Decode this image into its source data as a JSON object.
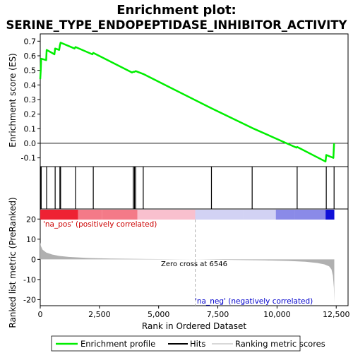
{
  "chart_data": {
    "type": "line",
    "title_line1": "Enrichment plot:",
    "title_line2": "SERINE_TYPE_ENDOPEPTIDASE_INHIBITOR_ACTIVITY",
    "es_panel": {
      "ylabel": "Enrichment score (ES)",
      "ylim": [
        -0.16,
        0.75
      ],
      "yticks": [
        -0.1,
        0.0,
        0.1,
        0.2,
        0.3,
        0.4,
        0.5,
        0.6,
        0.7
      ],
      "ytick_labels": [
        "-0.1",
        "0.0",
        "0.1",
        "0.2",
        "0.3",
        "0.4",
        "0.5",
        "0.6",
        "0.7"
      ],
      "points": [
        [
          0,
          0.44
        ],
        [
          20,
          0.5
        ],
        [
          40,
          0.58
        ],
        [
          250,
          0.57
        ],
        [
          270,
          0.64
        ],
        [
          600,
          0.61
        ],
        [
          630,
          0.65
        ],
        [
          800,
          0.64
        ],
        [
          830,
          0.67
        ],
        [
          860,
          0.69
        ],
        [
          1450,
          0.65
        ],
        [
          1490,
          0.66
        ],
        [
          2200,
          0.61
        ],
        [
          2240,
          0.62
        ],
        [
          3880,
          0.485
        ],
        [
          3930,
          0.49
        ],
        [
          3980,
          0.49
        ],
        [
          4030,
          0.495
        ],
        [
          4350,
          0.475
        ],
        [
          7230,
          0.24
        ],
        [
          8950,
          0.105
        ],
        [
          10820,
          -0.03
        ],
        [
          10850,
          -0.025
        ],
        [
          12050,
          -0.125
        ],
        [
          12080,
          -0.08
        ],
        [
          12380,
          -0.1
        ],
        [
          12410,
          0.0
        ]
      ]
    },
    "hits_panel": {
      "hit_positions": [
        20,
        40,
        270,
        630,
        830,
        860,
        1490,
        2240,
        3930,
        3980,
        4030,
        4350,
        7230,
        8950,
        10850,
        12080,
        12410
      ]
    },
    "color_band": {
      "positive_label": "'na_pos' (positively correlated)",
      "negative_label": "'na_neg' (negatively correlated)",
      "colors": {
        "positive_strong": "#ee2233",
        "positive_mid": "#f47a88",
        "positive_light": "#f9c0ce",
        "negative_light": "#d2d2f4",
        "negative_mid": "#8a8ae8",
        "negative_strong": "#1010d8"
      },
      "segments": [
        {
          "start": 0,
          "end": 1600,
          "color": "positive_strong"
        },
        {
          "start": 1600,
          "end": 2600,
          "color": "positive_mid"
        },
        {
          "start": 2600,
          "end": 4100,
          "color": "positive_mid"
        },
        {
          "start": 4100,
          "end": 6546,
          "color": "positive_light"
        },
        {
          "start": 6546,
          "end": 8600,
          "color": "negative_light"
        },
        {
          "start": 8600,
          "end": 9950,
          "color": "negative_light"
        },
        {
          "start": 9950,
          "end": 10750,
          "color": "negative_mid"
        },
        {
          "start": 10750,
          "end": 12050,
          "color": "negative_mid"
        },
        {
          "start": 12050,
          "end": 12420,
          "color": "negative_strong"
        }
      ]
    },
    "metric_panel": {
      "ylabel": "Ranked list metric (PreRanked)",
      "ylim": [
        -23,
        25
      ],
      "yticks": [
        -20,
        -10,
        0,
        10,
        20
      ],
      "ytick_labels": [
        "-20",
        "-10",
        "0",
        "10",
        "20"
      ],
      "zero_cross": 6546,
      "zero_cross_label": "Zero cross at 6546",
      "profile": [
        [
          0,
          8.5
        ],
        [
          30,
          6.5
        ],
        [
          100,
          4.8
        ],
        [
          250,
          3.4
        ],
        [
          500,
          2.4
        ],
        [
          800,
          1.7
        ],
        [
          1200,
          1.2
        ],
        [
          2000,
          0.7
        ],
        [
          3000,
          0.4
        ],
        [
          4500,
          0.15
        ],
        [
          6546,
          0.0
        ],
        [
          8000,
          -0.25
        ],
        [
          9500,
          -0.5
        ],
        [
          10500,
          -0.8
        ],
        [
          11200,
          -1.2
        ],
        [
          11700,
          -1.8
        ],
        [
          12000,
          -2.5
        ],
        [
          12200,
          -3.5
        ],
        [
          12300,
          -5.0
        ],
        [
          12360,
          -8.0
        ],
        [
          12400,
          -14.0
        ],
        [
          12420,
          -21.5
        ]
      ]
    },
    "xaxis": {
      "xlabel": "Rank in Ordered Dataset",
      "xlim": [
        0,
        13000
      ],
      "xticks": [
        0,
        2500,
        5000,
        7500,
        10000,
        12500
      ],
      "xtick_labels": [
        "0",
        "2,500",
        "5,000",
        "7,500",
        "10,000",
        "12,500"
      ]
    },
    "legend": {
      "placement": "bottom",
      "items": [
        "Enrichment profile",
        "Hits",
        "Ranking metric scores"
      ]
    },
    "colors": {
      "enrichment_line": "#00ee00",
      "hit_line": "#000000",
      "metric_fill": "#b0b0b0",
      "zero_line": "#b0b0b0"
    }
  }
}
